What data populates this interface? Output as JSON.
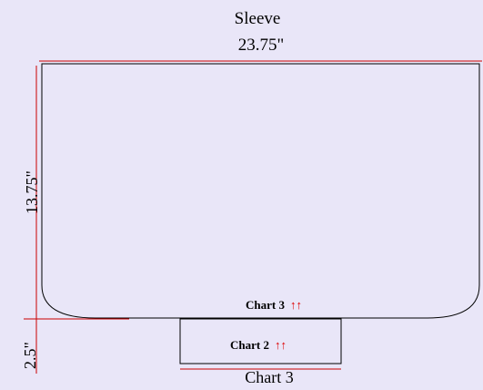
{
  "diagram": {
    "title": "Sleeve",
    "width_label": "23.75\"",
    "height_label": "13.75\"",
    "cuff_height_label": "2.5\"",
    "bottom_label": "Chart 3",
    "upper_chart_label": "Chart 3",
    "lower_chart_label": "Chart 2",
    "arrow_glyph": "↑↑",
    "colors": {
      "background": "#e9e6f8",
      "outline": "#000000",
      "measure_line": "#cc0000",
      "arrow": "#dd0000"
    }
  }
}
